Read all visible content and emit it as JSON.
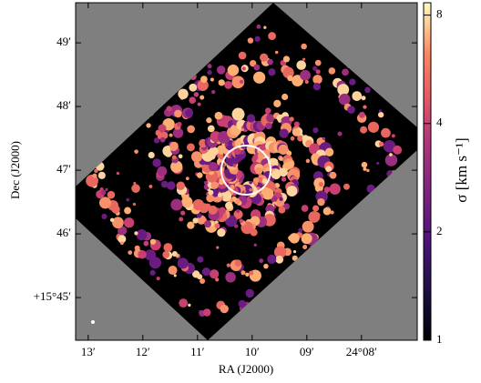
{
  "chart_data": {
    "type": "image",
    "xlabel": "RA (J2000)",
    "ylabel": "Dec (J2000)",
    "xlim": [
      13.23,
      6.98
    ],
    "xticks": [
      {
        "value": 13,
        "label": "13′"
      },
      {
        "value": 12,
        "label": "12′"
      },
      {
        "value": 11,
        "label": "11′"
      },
      {
        "value": 10,
        "label": "10′"
      },
      {
        "value": 9,
        "label": "09′"
      },
      {
        "value": 8,
        "label": "24°08′"
      }
    ],
    "ylim": [
      44.33,
      49.63
    ],
    "yticks": [
      {
        "value": 45,
        "label": "+15°45′"
      },
      {
        "value": 46,
        "label": "46′"
      },
      {
        "value": 47,
        "label": "47′"
      },
      {
        "value": 48,
        "label": "48′"
      },
      {
        "value": 49,
        "label": "49′"
      }
    ],
    "colorbar": {
      "label": "σ [km s⁻¹]",
      "lim": [
        1,
        8.66
      ],
      "ticks": [
        1,
        2,
        4,
        8
      ],
      "log_scale": true
    }
  }
}
